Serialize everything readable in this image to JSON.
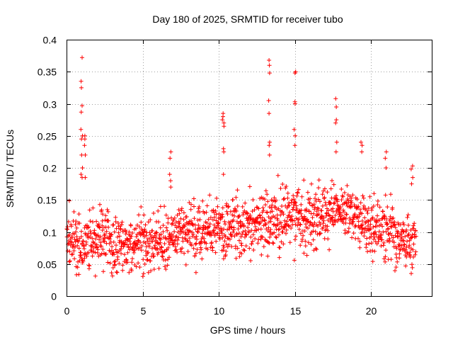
{
  "chart_data": {
    "type": "scatter",
    "title": "Day 180 of 2025, SRMTID for receiver tubo",
    "xlabel": "GPS time / hours",
    "ylabel": "SRMTID / TECUs",
    "xlim": [
      0,
      24
    ],
    "ylim": [
      0,
      0.4
    ],
    "xticks": [
      0,
      5,
      10,
      15,
      20
    ],
    "xtick_labels": [
      "0",
      "5",
      "10",
      "15",
      "20"
    ],
    "yticks": [
      0,
      0.05,
      0.1,
      0.15,
      0.2,
      0.25,
      0.3,
      0.35,
      0.4
    ],
    "ytick_labels": [
      "0",
      "0.05",
      "0.1",
      "0.15",
      "0.2",
      "0.25",
      "0.3",
      "0.35",
      "0.4"
    ],
    "grid": true,
    "marker": "+",
    "color": "#ff0000",
    "series": [
      {
        "name": "SRMTID",
        "trend": {
          "x": [
            0,
            2,
            4,
            6,
            8,
            10,
            12,
            14,
            16,
            18,
            20,
            22,
            23
          ],
          "y": [
            0.085,
            0.09,
            0.08,
            0.085,
            0.1,
            0.105,
            0.11,
            0.12,
            0.125,
            0.14,
            0.11,
            0.09,
            0.085
          ]
        },
        "spikes": [
          {
            "x": 1.0,
            "y": [
              0.372,
              0.335,
              0.325,
              0.297,
              0.287,
              0.26,
              0.25,
              0.245,
              0.22,
              0.2,
              0.19,
              0.185
            ]
          },
          {
            "x": 1.2,
            "y": [
              0.25,
              0.245,
              0.235,
              0.22,
              0.185
            ]
          },
          {
            "x": 6.8,
            "y": [
              0.225,
              0.215,
              0.19,
              0.18,
              0.17
            ]
          },
          {
            "x": 10.3,
            "y": [
              0.285,
              0.28,
              0.275,
              0.27,
              0.265,
              0.23,
              0.225,
              0.19
            ]
          },
          {
            "x": 13.3,
            "y": [
              0.368,
              0.36,
              0.348,
              0.305,
              0.285,
              0.24,
              0.235,
              0.22
            ]
          },
          {
            "x": 15.0,
            "y": [
              0.35,
              0.348,
              0.303,
              0.3,
              0.26,
              0.25,
              0.235
            ]
          },
          {
            "x": 17.7,
            "y": [
              0.308,
              0.295,
              0.275,
              0.27,
              0.24,
              0.225
            ]
          },
          {
            "x": 19.4,
            "y": [
              0.24,
              0.235,
              0.225
            ]
          },
          {
            "x": 21.0,
            "y": [
              0.225,
              0.215,
              0.2
            ]
          },
          {
            "x": 22.7,
            "y": [
              0.203,
              0.198,
              0.185,
              0.175
            ]
          }
        ]
      }
    ]
  }
}
